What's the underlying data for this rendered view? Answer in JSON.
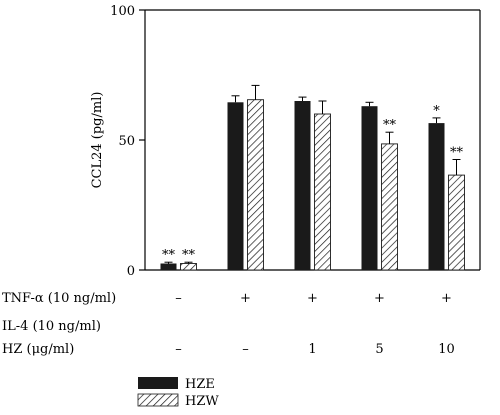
{
  "chart_data": {
    "type": "bar",
    "ylabel": "CCL24 (pg/ml)",
    "ylim": [
      0,
      100
    ],
    "yticks": [
      "0",
      "50",
      "100"
    ],
    "grid": false,
    "series": [
      {
        "name": "HZE",
        "fill": "solid-black",
        "values": [
          2.5,
          64.5,
          65,
          63,
          56.5
        ],
        "errors": [
          0.5,
          2.5,
          1.5,
          1.5,
          2
        ],
        "significance": [
          "**",
          "",
          "",
          "",
          "*"
        ]
      },
      {
        "name": "HZW",
        "fill": "diagonal-hatch",
        "values": [
          2.5,
          65.5,
          60,
          48.5,
          36.5
        ],
        "errors": [
          0.5,
          5.5,
          5,
          4.5,
          6
        ],
        "significance": [
          "**",
          "",
          "",
          "**",
          "**"
        ]
      }
    ],
    "conditions": [
      {
        "label": "TNF-α (10 ng/ml)",
        "values": [
          "–",
          "+",
          "+",
          "+",
          "+"
        ]
      },
      {
        "label": "IL-4 (10 ng/ml)",
        "values": [
          "",
          "",
          "",
          "",
          ""
        ]
      },
      {
        "label": "HZ (μg/ml)",
        "values": [
          "–",
          "–",
          "1",
          "5",
          "10"
        ]
      }
    ],
    "legend_placement": "bottom-left"
  },
  "colors": {
    "bar_solid": "#1a1a1a",
    "hatch": "#1a1a1a",
    "axis": "#000000"
  }
}
